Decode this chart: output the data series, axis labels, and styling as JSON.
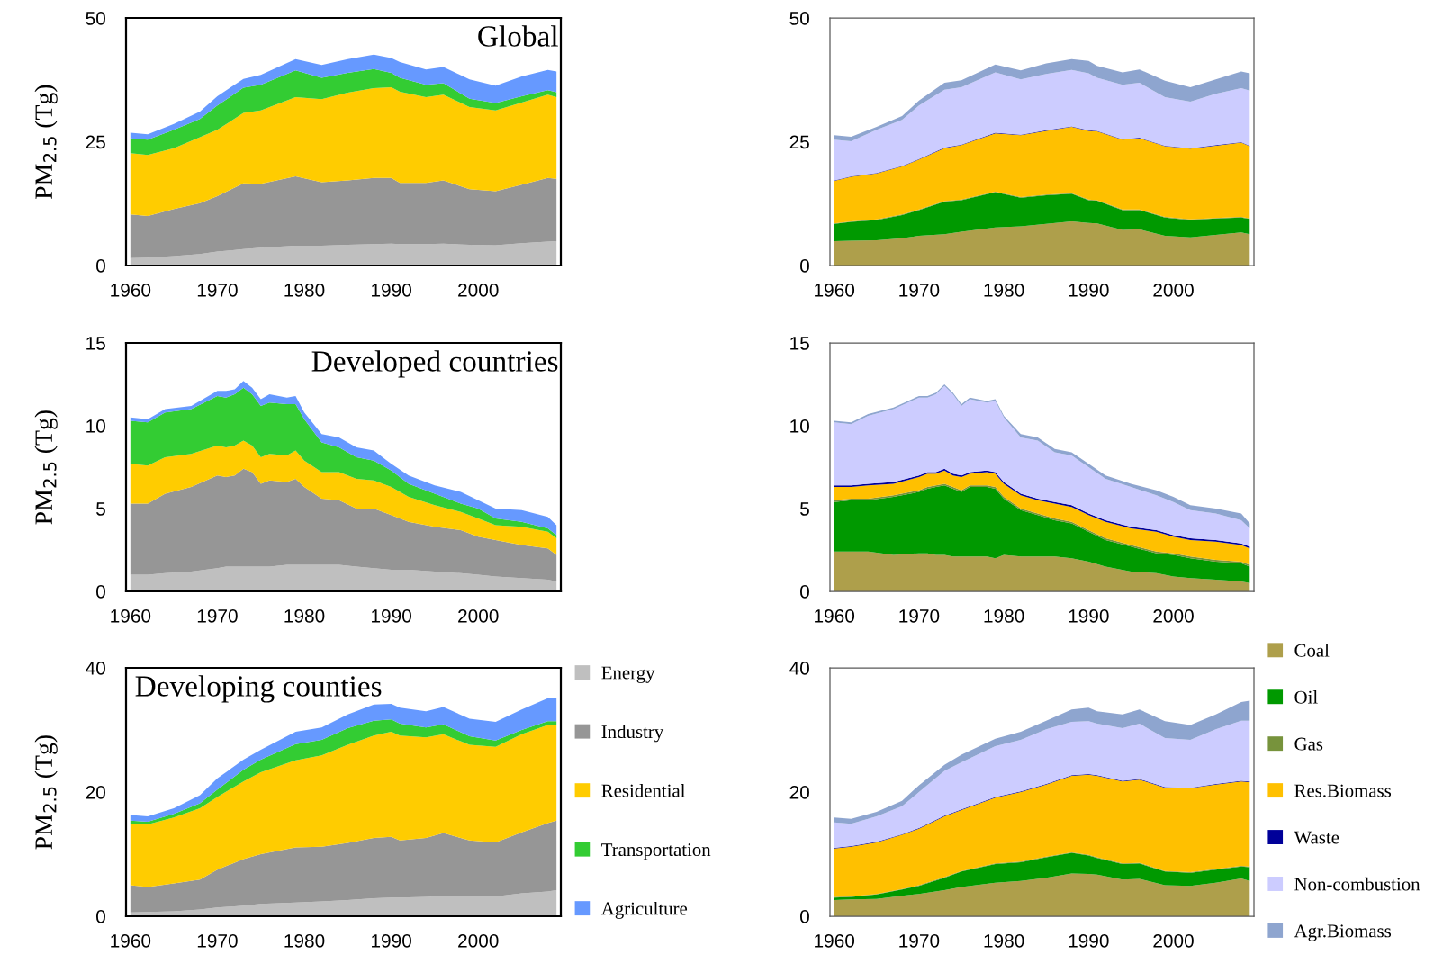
{
  "chart_data": [
    {
      "type": "area",
      "stacked": true,
      "ylabel": "PM$_{2.5}$ (Tg)",
      "annotations": [
        "Global"
      ],
      "xlim": [
        1959.5,
        2009.5
      ],
      "xticks": [
        1960,
        1970,
        1980,
        1990,
        2000
      ],
      "ylim": [
        0,
        50
      ],
      "yticks": [
        0,
        25,
        50
      ],
      "x": [
        1960,
        1962,
        1965,
        1968,
        1970,
        1973,
        1975,
        1979,
        1982,
        1985,
        1988,
        1990,
        1991,
        1994,
        1996,
        1999,
        2002,
        2005,
        2008,
        2009
      ],
      "series": [
        {
          "color": "#bfbfbf",
          "values": [
            1.5,
            1.6,
            1.9,
            2.3,
            2.8,
            3.3,
            3.6,
            4.0,
            4.0,
            4.2,
            4.3,
            4.4,
            4.3,
            4.3,
            4.4,
            4.2,
            4.1,
            4.5,
            4.8,
            4.9
          ]
        },
        {
          "color": "#969696",
          "values": [
            8.8,
            8.4,
            9.5,
            10.3,
            11.2,
            13.3,
            12.9,
            14.0,
            12.8,
            13.0,
            13.4,
            13.3,
            12.4,
            12.4,
            12.8,
            11.2,
            10.9,
            11.8,
            12.9,
            12.6
          ]
        },
        {
          "color": "#ffcc00",
          "values": [
            12.4,
            12.3,
            12.3,
            13.3,
            13.4,
            14.2,
            14.8,
            16.0,
            16.8,
            17.7,
            18.1,
            18.3,
            18.4,
            17.3,
            17.3,
            16.6,
            16.3,
            16.6,
            16.8,
            16.5
          ]
        },
        {
          "color": "#33cc33",
          "values": [
            3.0,
            3.1,
            3.7,
            3.7,
            4.9,
            5.1,
            5.2,
            5.4,
            4.3,
            4.0,
            3.9,
            2.9,
            2.8,
            2.5,
            2.3,
            1.7,
            1.5,
            1.3,
            0.9,
            1.0
          ]
        },
        {
          "color": "#6699ff",
          "values": [
            1.1,
            1.1,
            1.2,
            1.5,
            1.9,
            1.8,
            2.0,
            2.3,
            2.6,
            2.8,
            2.9,
            3.0,
            3.2,
            3.1,
            3.3,
            3.9,
            3.5,
            4.0,
            4.1,
            4.2
          ]
        }
      ]
    },
    {
      "type": "area",
      "stacked": true,
      "xlim": [
        1959.5,
        2009.5
      ],
      "xticks": [
        1960,
        1970,
        1980,
        1990,
        2000
      ],
      "ylim": [
        0,
        50
      ],
      "yticks": [
        0,
        25,
        50
      ],
      "x": [
        1960,
        1962,
        1965,
        1968,
        1970,
        1973,
        1975,
        1979,
        1982,
        1985,
        1988,
        1990,
        1991,
        1994,
        1996,
        1999,
        2002,
        2005,
        2008,
        2009
      ],
      "series": [
        {
          "color": "#ae9f4b",
          "values": [
            4.9,
            5.0,
            5.1,
            5.5,
            6.0,
            6.3,
            6.8,
            7.7,
            7.9,
            8.4,
            8.9,
            8.6,
            8.5,
            7.2,
            7.3,
            6.0,
            5.7,
            6.2,
            6.7,
            6.3
          ]
        },
        {
          "color": "#009900",
          "values": [
            3.5,
            3.8,
            4.1,
            4.7,
            5.2,
            6.6,
            6.4,
            7.1,
            5.8,
            5.8,
            5.6,
            4.6,
            4.6,
            4.0,
            3.9,
            3.7,
            3.5,
            3.3,
            3.0,
            3.1
          ]
        },
        {
          "color": "#77933c",
          "values": [
            0.1,
            0.1,
            0.1,
            0.1,
            0.1,
            0.1,
            0.1,
            0.1,
            0.1,
            0.1,
            0.1,
            0.1,
            0.1,
            0.1,
            0.1,
            0.1,
            0.1,
            0.1,
            0.1,
            0.1
          ]
        },
        {
          "color": "#ffc000",
          "values": [
            8.6,
            9.0,
            9.3,
            9.7,
            10.1,
            10.7,
            11.0,
            11.8,
            12.5,
            12.9,
            13.4,
            13.9,
            13.9,
            14.1,
            14.4,
            14.3,
            14.3,
            14.6,
            15.0,
            14.6
          ]
        },
        {
          "color": "#000099",
          "values": [
            0.1,
            0.1,
            0.1,
            0.1,
            0.1,
            0.1,
            0.1,
            0.1,
            0.1,
            0.1,
            0.1,
            0.1,
            0.1,
            0.1,
            0.1,
            0.1,
            0.1,
            0.1,
            0.1,
            0.1
          ]
        },
        {
          "color": "#ccccff",
          "values": [
            8.2,
            7.1,
            8.7,
            9.3,
            10.8,
            11.7,
            11.6,
            12.2,
            11.2,
            11.4,
            11.4,
            11.5,
            10.7,
            11.0,
            11.1,
            9.8,
            9.4,
            10.4,
            10.9,
            11.1
          ]
        },
        {
          "color": "#8ea5cf",
          "values": [
            0.9,
            0.9,
            0.6,
            0.8,
            1.0,
            1.4,
            1.4,
            1.6,
            1.8,
            2.1,
            2.2,
            2.5,
            2.4,
            2.5,
            2.7,
            3.3,
            2.9,
            2.9,
            3.4,
            3.5
          ]
        }
      ]
    },
    {
      "type": "area",
      "stacked": true,
      "ylabel": "PM$_{2.5}$ (Tg)",
      "annotations": [
        "Developed countries"
      ],
      "xlim": [
        1959.5,
        2009.5
      ],
      "xticks": [
        1960,
        1970,
        1980,
        1990,
        2000
      ],
      "ylim": [
        0,
        15
      ],
      "yticks": [
        0,
        5,
        10,
        15
      ],
      "x": [
        1960,
        1962,
        1964,
        1967,
        1970,
        1971,
        1972,
        1973,
        1974,
        1975,
        1976,
        1978,
        1979,
        1980,
        1982,
        1984,
        1986,
        1988,
        1990,
        1992,
        1995,
        1998,
        2000,
        2002,
        2005,
        2008,
        2009
      ],
      "series": [
        {
          "color": "#bfbfbf",
          "values": [
            1.0,
            1.0,
            1.1,
            1.2,
            1.4,
            1.5,
            1.5,
            1.5,
            1.5,
            1.5,
            1.5,
            1.6,
            1.6,
            1.6,
            1.6,
            1.6,
            1.5,
            1.4,
            1.3,
            1.3,
            1.2,
            1.1,
            1.0,
            0.9,
            0.8,
            0.7,
            0.6
          ]
        },
        {
          "color": "#969696",
          "values": [
            4.3,
            4.3,
            4.8,
            5.1,
            5.6,
            5.4,
            5.5,
            5.9,
            5.7,
            5.0,
            5.2,
            5.0,
            5.2,
            4.7,
            4.0,
            3.9,
            3.5,
            3.6,
            3.3,
            2.9,
            2.7,
            2.6,
            2.3,
            2.2,
            2.0,
            1.9,
            1.6
          ]
        },
        {
          "color": "#ffcc00",
          "values": [
            2.4,
            2.3,
            2.2,
            2.0,
            1.8,
            1.8,
            1.8,
            1.7,
            1.6,
            1.6,
            1.6,
            1.6,
            1.7,
            1.6,
            1.6,
            1.7,
            1.8,
            1.7,
            1.7,
            1.5,
            1.3,
            1.1,
            1.1,
            0.9,
            1.1,
            1.0,
            1.0
          ]
        },
        {
          "color": "#33cc33",
          "values": [
            2.6,
            2.6,
            2.7,
            2.7,
            3.0,
            3.0,
            3.1,
            3.2,
            3.1,
            3.1,
            3.1,
            3.1,
            2.8,
            2.5,
            1.8,
            1.5,
            1.3,
            1.2,
            1.0,
            0.8,
            0.7,
            0.5,
            0.6,
            0.4,
            0.3,
            0.2,
            0.2
          ]
        },
        {
          "color": "#6699ff",
          "values": [
            0.2,
            0.2,
            0.2,
            0.2,
            0.3,
            0.4,
            0.3,
            0.4,
            0.4,
            0.4,
            0.5,
            0.4,
            0.5,
            0.4,
            0.5,
            0.6,
            0.6,
            0.6,
            0.4,
            0.5,
            0.5,
            0.7,
            0.5,
            0.6,
            0.7,
            0.7,
            0.6
          ]
        }
      ]
    },
    {
      "type": "area",
      "stacked": true,
      "xlim": [
        1959.5,
        2009.5
      ],
      "xticks": [
        1960,
        1970,
        1980,
        1990,
        2000
      ],
      "ylim": [
        0,
        15
      ],
      "yticks": [
        0,
        5,
        10,
        15
      ],
      "x": [
        1960,
        1962,
        1964,
        1967,
        1970,
        1971,
        1972,
        1973,
        1974,
        1975,
        1976,
        1978,
        1979,
        1980,
        1982,
        1984,
        1986,
        1988,
        1990,
        1992,
        1995,
        1998,
        2000,
        2002,
        2005,
        2008,
        2009
      ],
      "series": [
        {
          "color": "#ae9f4b",
          "values": [
            2.4,
            2.4,
            2.4,
            2.2,
            2.3,
            2.3,
            2.2,
            2.2,
            2.1,
            2.1,
            2.1,
            2.1,
            2.0,
            2.2,
            2.1,
            2.1,
            2.1,
            2.0,
            1.8,
            1.5,
            1.2,
            1.1,
            0.9,
            0.8,
            0.7,
            0.6,
            0.5
          ]
        },
        {
          "color": "#009900",
          "values": [
            3.0,
            3.1,
            3.1,
            3.5,
            3.7,
            3.9,
            4.1,
            4.2,
            4.1,
            3.9,
            4.2,
            4.2,
            4.2,
            3.4,
            2.8,
            2.5,
            2.2,
            2.1,
            1.8,
            1.6,
            1.5,
            1.2,
            1.3,
            1.2,
            1.1,
            1.1,
            1.0
          ]
        },
        {
          "color": "#77933c",
          "values": [
            0.1,
            0.1,
            0.1,
            0.1,
            0.1,
            0.1,
            0.1,
            0.1,
            0.1,
            0.1,
            0.1,
            0.1,
            0.1,
            0.1,
            0.1,
            0.1,
            0.1,
            0.1,
            0.1,
            0.1,
            0.1,
            0.1,
            0.1,
            0.1,
            0.1,
            0.1,
            0.1
          ]
        },
        {
          "color": "#ffc000",
          "values": [
            0.8,
            0.7,
            0.8,
            0.7,
            0.8,
            0.8,
            0.7,
            0.8,
            0.7,
            0.8,
            0.7,
            0.8,
            0.8,
            0.8,
            0.8,
            0.8,
            0.9,
            0.9,
            0.9,
            1.0,
            1.0,
            1.2,
            1.0,
            1.0,
            1.1,
            1.0,
            1.0
          ]
        },
        {
          "color": "#000099",
          "values": [
            0.1,
            0.1,
            0.1,
            0.1,
            0.1,
            0.1,
            0.1,
            0.1,
            0.1,
            0.1,
            0.1,
            0.1,
            0.1,
            0.1,
            0.1,
            0.1,
            0.1,
            0.1,
            0.1,
            0.1,
            0.1,
            0.1,
            0.1,
            0.1,
            0.1,
            0.1,
            0.1
          ]
        },
        {
          "color": "#ccccff",
          "values": [
            3.8,
            3.7,
            4.1,
            4.4,
            4.7,
            4.5,
            4.7,
            5.0,
            4.8,
            4.2,
            4.4,
            4.1,
            4.3,
            3.9,
            3.4,
            3.5,
            3.0,
            3.0,
            2.8,
            2.5,
            2.4,
            2.1,
            2.0,
            1.7,
            1.6,
            1.4,
            1.1
          ]
        },
        {
          "color": "#8ea5cf",
          "values": [
            0.1,
            0.1,
            0.1,
            0.1,
            0.1,
            0.1,
            0.1,
            0.1,
            0.1,
            0.1,
            0.1,
            0.1,
            0.1,
            0.1,
            0.2,
            0.2,
            0.2,
            0.2,
            0.2,
            0.2,
            0.2,
            0.3,
            0.3,
            0.3,
            0.3,
            0.4,
            0.3
          ]
        }
      ]
    },
    {
      "type": "area",
      "stacked": true,
      "ylabel": "PM$_{2.5}$ (Tg)",
      "annotations": [
        "Developing counties"
      ],
      "legend": "right",
      "xlim": [
        1959.5,
        2009.5
      ],
      "xticks": [
        1960,
        1970,
        1980,
        1990,
        2000
      ],
      "ylim": [
        0,
        40
      ],
      "yticks": [
        0,
        20,
        40
      ],
      "x": [
        1960,
        1962,
        1965,
        1968,
        1970,
        1973,
        1975,
        1979,
        1982,
        1985,
        1988,
        1990,
        1991,
        1994,
        1996,
        1999,
        2002,
        2005,
        2008,
        2009
      ],
      "series": [
        {
          "name": "Energy",
          "color": "#bfbfbf",
          "values": [
            0.6,
            0.7,
            0.8,
            1.1,
            1.4,
            1.7,
            2.0,
            2.2,
            2.4,
            2.6,
            2.9,
            3.0,
            3.0,
            3.1,
            3.3,
            3.2,
            3.2,
            3.7,
            4.0,
            4.2
          ]
        },
        {
          "name": "Industry",
          "color": "#969696",
          "values": [
            4.4,
            4.0,
            4.5,
            4.8,
            6.1,
            7.5,
            8.0,
            8.9,
            8.8,
            9.2,
            9.7,
            9.8,
            9.2,
            9.5,
            10.1,
            9.0,
            8.7,
            9.8,
            11.0,
            11.2
          ]
        },
        {
          "name": "Residential",
          "color": "#ffcc00",
          "values": [
            9.9,
            10.1,
            10.6,
            11.5,
            11.7,
            12.5,
            13.2,
            14.0,
            14.7,
            15.8,
            16.5,
            16.9,
            16.9,
            16.2,
            15.9,
            15.4,
            15.4,
            15.8,
            15.8,
            15.4
          ]
        },
        {
          "name": "Transportation",
          "color": "#33cc33",
          "values": [
            0.5,
            0.4,
            0.6,
            0.8,
            1.2,
            1.9,
            2.0,
            2.6,
            2.5,
            2.7,
            2.4,
            2.0,
            1.9,
            1.6,
            1.6,
            1.4,
            1.0,
            0.7,
            0.6,
            0.6
          ]
        },
        {
          "name": "Agriculture",
          "color": "#6699ff",
          "values": [
            0.9,
            0.9,
            0.9,
            1.3,
            1.8,
            1.6,
            1.6,
            2.0,
            2.0,
            2.2,
            2.6,
            2.5,
            2.6,
            2.6,
            2.8,
            2.8,
            3.0,
            3.3,
            3.7,
            3.7
          ]
        }
      ]
    },
    {
      "type": "area",
      "stacked": true,
      "legend": "right",
      "xlim": [
        1959.5,
        2009.5
      ],
      "xticks": [
        1960,
        1970,
        1980,
        1990,
        2000
      ],
      "ylim": [
        0,
        40
      ],
      "yticks": [
        0,
        20,
        40
      ],
      "x": [
        1960,
        1962,
        1965,
        1968,
        1970,
        1973,
        1975,
        1979,
        1982,
        1985,
        1988,
        1990,
        1991,
        1994,
        1996,
        1999,
        2002,
        2005,
        2008,
        2009
      ],
      "series": [
        {
          "name": "Coal",
          "color": "#ae9f4b",
          "values": [
            2.6,
            2.7,
            2.8,
            3.3,
            3.6,
            4.2,
            4.7,
            5.4,
            5.7,
            6.2,
            6.9,
            6.8,
            6.7,
            5.9,
            6.0,
            5.0,
            4.9,
            5.4,
            6.1,
            5.7
          ]
        },
        {
          "name": "Oil",
          "color": "#009900",
          "values": [
            0.4,
            0.4,
            0.7,
            1.0,
            1.3,
            2.0,
            2.5,
            3.0,
            3.0,
            3.3,
            3.3,
            3.0,
            2.7,
            2.5,
            2.5,
            2.2,
            2.1,
            2.1,
            1.9,
            2.2
          ]
        },
        {
          "name": "Gas",
          "color": "#77933c",
          "values": [
            0.1,
            0.1,
            0.1,
            0.1,
            0.1,
            0.1,
            0.1,
            0.1,
            0.1,
            0.1,
            0.1,
            0.1,
            0.1,
            0.1,
            0.1,
            0.1,
            0.1,
            0.1,
            0.1,
            0.1
          ]
        },
        {
          "name": "Res.Biomass",
          "color": "#ffc000",
          "values": [
            7.8,
            8.0,
            8.3,
            8.7,
            9.1,
            9.8,
            9.8,
            10.6,
            11.2,
            11.6,
            12.3,
            12.9,
            13.1,
            13.2,
            13.4,
            13.4,
            13.5,
            13.6,
            13.6,
            13.6
          ]
        },
        {
          "name": "Waste",
          "color": "#000099",
          "values": [
            0.1,
            0.1,
            0.1,
            0.1,
            0.1,
            0.1,
            0.1,
            0.1,
            0.1,
            0.1,
            0.1,
            0.1,
            0.1,
            0.1,
            0.1,
            0.1,
            0.1,
            0.1,
            0.1,
            0.1
          ]
        },
        {
          "name": "Non-combustion",
          "color": "#ccccff",
          "values": [
            4.1,
            3.6,
            4.1,
            4.5,
            5.8,
            7.2,
            7.6,
            8.2,
            8.3,
            8.8,
            8.6,
            8.5,
            8.3,
            8.5,
            8.9,
            7.9,
            7.7,
            8.8,
            9.7,
            9.8
          ]
        },
        {
          "name": "Agr.Biomass",
          "color": "#8ea5cf",
          "values": [
            0.8,
            0.8,
            0.7,
            0.9,
            1.1,
            1.0,
            1.2,
            1.2,
            1.3,
            1.4,
            2.0,
            2.2,
            2.0,
            2.2,
            2.3,
            2.7,
            2.4,
            2.4,
            3.0,
            3.2
          ]
        }
      ]
    }
  ]
}
